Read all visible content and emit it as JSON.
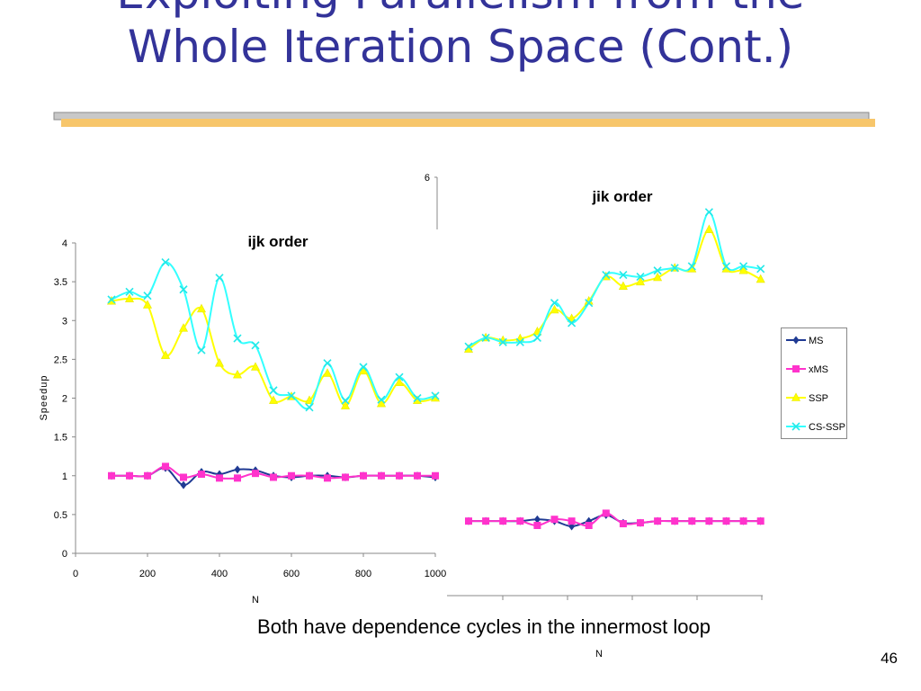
{
  "slide": {
    "title_line1": "Exploiting Parallelism from the",
    "title_line2": "Whole Iteration Space (Cont.)",
    "caption": "Both have dependence cycles in the innermost loop",
    "number": "46"
  },
  "colors": {
    "title": "#333399",
    "rule_gray": "#c0c0c0",
    "rule_gold": "#f5c56a",
    "MS": "#1f3a93",
    "xMS": "#ff33cc",
    "SSP": "#ffff00",
    "CS-SSP": "#33ffff"
  },
  "chart_data": [
    {
      "type": "line",
      "title": "ijk order",
      "xlabel": "N",
      "ylabel": "Speedup",
      "xlim": [
        0,
        1000
      ],
      "ylim": [
        0,
        4
      ],
      "xticks": [
        "0",
        "200",
        "400",
        "600",
        "800",
        "1000"
      ],
      "yticks": [
        "0",
        "0.5",
        "1",
        "1.5",
        "2",
        "2.5",
        "3",
        "3.5",
        "4"
      ],
      "x": [
        100,
        150,
        200,
        250,
        300,
        350,
        400,
        450,
        500,
        550,
        600,
        650,
        700,
        750,
        800,
        850,
        900,
        950,
        1000
      ],
      "series": [
        {
          "name": "MS",
          "marker": "diamond",
          "values": [
            1.0,
            1.0,
            1.0,
            1.1,
            0.88,
            1.05,
            1.02,
            1.08,
            1.07,
            1.0,
            0.98,
            1.0,
            1.0,
            0.98,
            1.0,
            1.0,
            1.0,
            1.0,
            0.98
          ]
        },
        {
          "name": "xMS",
          "marker": "square",
          "values": [
            1.0,
            1.0,
            1.0,
            1.12,
            0.98,
            1.02,
            0.97,
            0.97,
            1.03,
            0.98,
            1.0,
            1.0,
            0.97,
            0.98,
            1.0,
            1.0,
            1.0,
            1.0,
            1.0
          ]
        },
        {
          "name": "SSP",
          "marker": "triangle",
          "values": [
            3.25,
            3.28,
            3.2,
            2.55,
            2.9,
            3.15,
            2.45,
            2.3,
            2.4,
            1.97,
            2.02,
            1.97,
            2.32,
            1.9,
            2.35,
            1.93,
            2.2,
            1.97,
            2.0
          ]
        },
        {
          "name": "CS-SSP",
          "marker": "x",
          "values": [
            3.27,
            3.37,
            3.32,
            3.75,
            3.4,
            2.62,
            3.55,
            2.77,
            2.68,
            2.1,
            2.03,
            1.88,
            2.45,
            1.97,
            2.4,
            1.98,
            2.27,
            2.0,
            2.03
          ]
        }
      ]
    },
    {
      "type": "line",
      "title": "jik order",
      "xlabel": "N",
      "ylabel": "",
      "yticks_visible": [
        "6"
      ],
      "legend": "right",
      "series": [
        {
          "name": "MS",
          "marker": "diamond",
          "values": [
            0.38,
            0.38,
            0.38,
            0.38,
            0.4,
            0.38,
            0.32,
            0.38,
            0.45,
            0.36,
            0.36,
            0.38,
            0.38,
            0.38,
            0.38,
            0.38,
            0.38,
            0.38
          ]
        },
        {
          "name": "xMS",
          "marker": "square",
          "values": [
            0.38,
            0.38,
            0.38,
            0.38,
            0.33,
            0.4,
            0.38,
            0.33,
            0.47,
            0.35,
            0.36,
            0.38,
            0.38,
            0.38,
            0.38,
            0.38,
            0.38,
            0.38
          ]
        },
        {
          "name": "SSP",
          "marker": "triangle",
          "values": [
            2.35,
            2.48,
            2.45,
            2.47,
            2.55,
            2.8,
            2.7,
            2.9,
            3.18,
            3.07,
            3.12,
            3.17,
            3.28,
            3.27,
            3.72,
            3.27,
            3.25,
            3.15
          ]
        },
        {
          "name": "CS-SSP",
          "marker": "x",
          "values": [
            2.38,
            2.48,
            2.43,
            2.43,
            2.48,
            2.88,
            2.65,
            2.88,
            3.2,
            3.2,
            3.18,
            3.25,
            3.28,
            3.3,
            3.92,
            3.3,
            3.3,
            3.27
          ]
        }
      ]
    }
  ]
}
